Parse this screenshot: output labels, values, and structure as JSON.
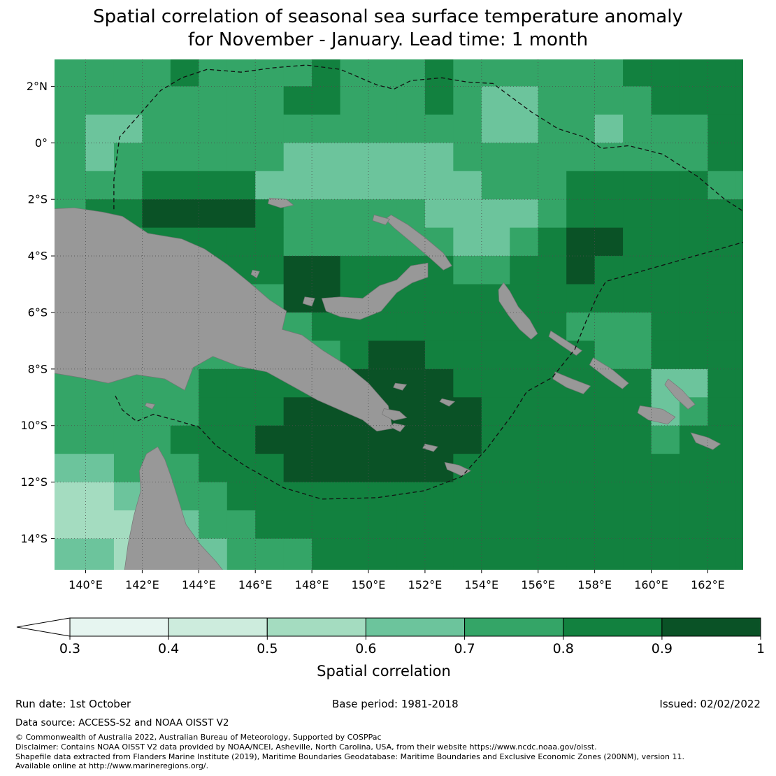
{
  "title": {
    "line1": "Spatial correlation of seasonal sea surface temperature anomaly",
    "line2": "for November - January. Lead time: 1 month"
  },
  "footer": {
    "run_date": "Run date: 1st October",
    "base_period": "Base period: 1981-2018",
    "issued": "Issued: 02/02/2022",
    "data_source": "Data source: ACCESS-S2 and NOAA OISST V2",
    "copyright": "© Commonwealth of Australia 2022, Australian Bureau of Meteorology, Supported by COSPPac",
    "disclaimer": "Disclaimer: Contains NOAA OISST V2 data provided by NOAA/NCEI, Asheville, North Carolina, USA, from their website https://www.ncdc.noaa.gov/oisst.",
    "shapefile": "Shapefile data extracted from Flanders Marine Institute (2019), Maritime Boundaries Geodatabase: Maritime Boundaries and Exclusive Economic Zones (200NM), version 11.",
    "available": "Available online at http://www.marineregions.org/."
  },
  "chart_data": {
    "type": "heatmap",
    "title": "Spatial correlation of seasonal sea surface temperature anomaly for November - January. Lead time: 1 month",
    "bin_colors": {
      "3": "#e6f5f0",
      "4": "#cdecdd",
      "5": "#a4dcc0",
      "6": "#6cc49c",
      "7": "#34a567",
      "8": "#12813f",
      "9": "#0a5226"
    },
    "colorbar": {
      "label": "Spatial correlation",
      "ticks": [
        "0.3",
        "0.4",
        "0.5",
        "0.6",
        "0.7",
        "0.8",
        "0.9",
        "1"
      ],
      "under_color": "#ffffff",
      "bins": [
        {
          "min": 0.3,
          "max": 0.4,
          "key": "3"
        },
        {
          "min": 0.4,
          "max": 0.5,
          "key": "4"
        },
        {
          "min": 0.5,
          "max": 0.6,
          "key": "5"
        },
        {
          "min": 0.6,
          "max": 0.7,
          "key": "6"
        },
        {
          "min": 0.7,
          "max": 0.8,
          "key": "7"
        },
        {
          "min": 0.8,
          "max": 0.9,
          "key": "8"
        },
        {
          "min": 0.9,
          "max": 1.0,
          "key": "9"
        }
      ]
    },
    "map": {
      "lon_range": [
        138.9,
        163.25
      ],
      "lat_range": [
        2.95,
        -15.1
      ],
      "land_color": "#989898",
      "x_ticks": [
        {
          "lon": 140,
          "label": "140°E"
        },
        {
          "lon": 142,
          "label": "142°E"
        },
        {
          "lon": 144,
          "label": "144°E"
        },
        {
          "lon": 146,
          "label": "146°E"
        },
        {
          "lon": 148,
          "label": "148°E"
        },
        {
          "lon": 150,
          "label": "150°E"
        },
        {
          "lon": 152,
          "label": "152°E"
        },
        {
          "lon": 154,
          "label": "154°E"
        },
        {
          "lon": 156,
          "label": "156°E"
        },
        {
          "lon": 158,
          "label": "158°E"
        },
        {
          "lon": 160,
          "label": "160°E"
        },
        {
          "lon": 162,
          "label": "162°E"
        }
      ],
      "y_ticks": [
        {
          "lat": 2,
          "label": "2°N"
        },
        {
          "lat": 0,
          "label": "0°"
        },
        {
          "lat": -2,
          "label": "2°S"
        },
        {
          "lat": -4,
          "label": "4°S"
        },
        {
          "lat": -6,
          "label": "6°S"
        },
        {
          "lat": -8,
          "label": "8°S"
        },
        {
          "lat": -10,
          "label": "10°S"
        },
        {
          "lat": -12,
          "label": "12°S"
        },
        {
          "lat": -14,
          "label": "14°S"
        }
      ],
      "grid": {
        "lon0": 138,
        "lat0": 3,
        "cols": 26,
        "cell_deg": 1,
        "rows_rle": [
          "7:5,8:1,7:4,8:1,7:3,8:1,7:6,8:5",
          "7:9,8:2,7:3,8:1,7:1,6:2,7:4,8:4",
          "7:2,6:2,7:12,6:2,7:2,6:1,7:3,8:2",
          "7:2,6:1,7:6,6:6,7:9,8:2",
          "7:4,8:4,6:8,7:3,8:5,7:2",
          "7:2,8:2,9:4,8:1,7:5,6:4,7:1,8:7",
          "7:4,8:5,7:6,6:2,7:1,8:1,9:2,8:5",
          "7:6,8:3,9:2,8:4,7:2,8:2,9:1,8:6",
          "7:9,9:2,8:15",
          "7:10,8:9,7:3,8:4",
          "7:11,8:1,9:2,8:6,7:2,8:4",
          "7:6,8:5,9:4,8:7,6:2,8:2",
          "7:6,8:3,9:7,8:6,6:1,7:1,8:2",
          "7:5,8:3,9:8,8:6,7:1,8:3",
          "6:3,7:3,8:3,9:6,8:11",
          "5:3,6:2,7:2,8:19",
          "5:5,6:1,7:2,8:18",
          "6:3,5:2,6:2,7:3,8:16",
          "6:3,5:2,6:2,7:3,8:16"
        ]
      },
      "land": {
        "new_guinea": [
          [
            138.6,
            -2.35
          ],
          [
            139.6,
            -2.3
          ],
          [
            140.6,
            -2.45
          ],
          [
            141.3,
            -2.6
          ],
          [
            142.2,
            -3.2
          ],
          [
            143.4,
            -3.4
          ],
          [
            144.2,
            -3.75
          ],
          [
            145.0,
            -4.3
          ],
          [
            145.8,
            -4.95
          ],
          [
            146.5,
            -5.55
          ],
          [
            147.1,
            -5.95
          ],
          [
            146.95,
            -6.6
          ],
          [
            147.65,
            -6.8
          ],
          [
            148.4,
            -7.35
          ],
          [
            149.2,
            -7.85
          ],
          [
            150.0,
            -8.5
          ],
          [
            150.7,
            -9.3
          ],
          [
            150.85,
            -10.1
          ],
          [
            150.3,
            -10.2
          ],
          [
            149.8,
            -9.8
          ],
          [
            149.0,
            -9.45
          ],
          [
            148.2,
            -9.1
          ],
          [
            147.3,
            -8.6
          ],
          [
            146.4,
            -8.1
          ],
          [
            145.4,
            -7.9
          ],
          [
            144.5,
            -7.55
          ],
          [
            143.8,
            -7.95
          ],
          [
            143.5,
            -8.75
          ],
          [
            142.8,
            -8.35
          ],
          [
            141.8,
            -8.2
          ],
          [
            140.8,
            -8.5
          ],
          [
            139.8,
            -8.3
          ],
          [
            138.9,
            -8.15
          ],
          [
            138.6,
            -7.8
          ]
        ],
        "cape_york": [
          [
            141.35,
            -15.3
          ],
          [
            141.5,
            -14.2
          ],
          [
            141.7,
            -13.2
          ],
          [
            141.95,
            -12.3
          ],
          [
            141.9,
            -11.6
          ],
          [
            142.15,
            -11.0
          ],
          [
            142.55,
            -10.75
          ],
          [
            142.8,
            -11.2
          ],
          [
            143.05,
            -11.9
          ],
          [
            143.3,
            -12.7
          ],
          [
            143.55,
            -13.5
          ],
          [
            144.05,
            -14.2
          ],
          [
            144.6,
            -14.8
          ],
          [
            145.0,
            -15.3
          ]
        ],
        "new_britain": [
          [
            148.35,
            -5.5
          ],
          [
            149.0,
            -5.45
          ],
          [
            149.8,
            -5.5
          ],
          [
            150.4,
            -5.05
          ],
          [
            151.0,
            -4.85
          ],
          [
            151.5,
            -4.35
          ],
          [
            152.1,
            -4.25
          ],
          [
            152.1,
            -4.75
          ],
          [
            151.55,
            -4.95
          ],
          [
            151.0,
            -5.3
          ],
          [
            150.45,
            -5.95
          ],
          [
            149.7,
            -6.25
          ],
          [
            149.0,
            -6.15
          ],
          [
            148.5,
            -5.95
          ]
        ],
        "new_ireland": [
          [
            150.8,
            -2.55
          ],
          [
            151.4,
            -2.9
          ],
          [
            152.0,
            -3.35
          ],
          [
            152.65,
            -3.9
          ],
          [
            152.95,
            -4.35
          ],
          [
            152.65,
            -4.5
          ],
          [
            152.15,
            -4.05
          ],
          [
            151.5,
            -3.5
          ],
          [
            150.9,
            -3.0
          ],
          [
            150.6,
            -2.7
          ]
        ],
        "new_hanover": [
          [
            150.2,
            -2.55
          ],
          [
            150.75,
            -2.7
          ],
          [
            150.6,
            -2.9
          ],
          [
            150.15,
            -2.75
          ]
        ],
        "manus": [
          [
            146.5,
            -1.95
          ],
          [
            147.1,
            -2.0
          ],
          [
            147.35,
            -2.2
          ],
          [
            146.9,
            -2.3
          ],
          [
            146.45,
            -2.15
          ]
        ],
        "umboi": [
          [
            147.75,
            -5.45
          ],
          [
            148.1,
            -5.5
          ],
          [
            148.0,
            -5.78
          ],
          [
            147.68,
            -5.68
          ]
        ],
        "karkar": [
          [
            145.9,
            -4.5
          ],
          [
            146.15,
            -4.55
          ],
          [
            146.05,
            -4.78
          ],
          [
            145.85,
            -4.65
          ]
        ],
        "bougainville": [
          [
            154.6,
            -5.2
          ],
          [
            154.78,
            -4.95
          ],
          [
            155.0,
            -5.25
          ],
          [
            155.3,
            -5.8
          ],
          [
            155.7,
            -6.25
          ],
          [
            155.98,
            -6.75
          ],
          [
            155.75,
            -6.95
          ],
          [
            155.35,
            -6.6
          ],
          [
            154.95,
            -6.1
          ],
          [
            154.62,
            -5.6
          ]
        ],
        "choiseul": [
          [
            156.45,
            -6.65
          ],
          [
            157.0,
            -7.0
          ],
          [
            157.55,
            -7.35
          ],
          [
            157.35,
            -7.52
          ],
          [
            156.8,
            -7.15
          ],
          [
            156.38,
            -6.85
          ]
        ],
        "new_georgia": [
          [
            156.6,
            -8.1
          ],
          [
            157.2,
            -8.35
          ],
          [
            157.85,
            -8.6
          ],
          [
            157.6,
            -8.88
          ],
          [
            157.0,
            -8.65
          ],
          [
            156.52,
            -8.35
          ]
        ],
        "santa_isabel": [
          [
            157.95,
            -7.6
          ],
          [
            158.6,
            -8.0
          ],
          [
            159.2,
            -8.5
          ],
          [
            158.98,
            -8.7
          ],
          [
            158.4,
            -8.3
          ],
          [
            157.82,
            -7.85
          ]
        ],
        "guadalcanal": [
          [
            159.6,
            -9.3
          ],
          [
            160.4,
            -9.42
          ],
          [
            160.85,
            -9.7
          ],
          [
            160.58,
            -9.95
          ],
          [
            159.9,
            -9.8
          ],
          [
            159.52,
            -9.55
          ]
        ],
        "malaita": [
          [
            160.6,
            -8.35
          ],
          [
            161.1,
            -8.75
          ],
          [
            161.55,
            -9.25
          ],
          [
            161.3,
            -9.42
          ],
          [
            160.85,
            -9.0
          ],
          [
            160.48,
            -8.55
          ]
        ],
        "makira": [
          [
            161.4,
            -10.25
          ],
          [
            162.0,
            -10.42
          ],
          [
            162.45,
            -10.65
          ],
          [
            162.18,
            -10.85
          ],
          [
            161.58,
            -10.6
          ]
        ],
        "dentrecasteaux": [
          [
            150.55,
            -9.4
          ],
          [
            151.1,
            -9.5
          ],
          [
            151.35,
            -9.72
          ],
          [
            150.9,
            -9.82
          ],
          [
            150.48,
            -9.6
          ]
        ],
        "fergusson": [
          [
            150.9,
            -9.92
          ],
          [
            151.3,
            -10.0
          ],
          [
            151.12,
            -10.22
          ],
          [
            150.78,
            -10.05
          ]
        ],
        "trobriand": [
          [
            150.95,
            -8.5
          ],
          [
            151.35,
            -8.55
          ],
          [
            151.2,
            -8.75
          ],
          [
            150.88,
            -8.65
          ]
        ],
        "woodlark": [
          [
            152.6,
            -9.05
          ],
          [
            153.05,
            -9.15
          ],
          [
            152.85,
            -9.32
          ],
          [
            152.52,
            -9.15
          ]
        ],
        "misima": [
          [
            152.0,
            -10.65
          ],
          [
            152.45,
            -10.75
          ],
          [
            152.3,
            -10.92
          ],
          [
            151.92,
            -10.8
          ]
        ],
        "louisiade": [
          [
            152.7,
            -11.3
          ],
          [
            153.2,
            -11.4
          ],
          [
            153.62,
            -11.6
          ],
          [
            153.3,
            -11.78
          ],
          [
            152.78,
            -11.55
          ]
        ],
        "torres_islands": [
          [
            142.15,
            -9.2
          ],
          [
            142.45,
            -9.25
          ],
          [
            142.35,
            -9.42
          ],
          [
            142.1,
            -9.3
          ]
        ]
      },
      "eez_boundaries": [
        {
          "name": "png-eez-north",
          "points": [
            [
              141.0,
              -2.35
            ],
            [
              141.0,
              -1.3
            ],
            [
              141.2,
              0.2
            ],
            [
              142.65,
              1.85
            ],
            [
              143.4,
              2.3
            ],
            [
              144.3,
              2.6
            ],
            [
              145.5,
              2.5
            ],
            [
              146.6,
              2.65
            ],
            [
              147.8,
              2.75
            ],
            [
              149.0,
              2.6
            ],
            [
              150.3,
              2.05
            ],
            [
              150.9,
              1.9
            ],
            [
              151.5,
              2.2
            ],
            [
              152.6,
              2.3
            ],
            [
              153.5,
              2.15
            ],
            [
              154.4,
              2.1
            ],
            [
              155.75,
              1.1
            ],
            [
              156.7,
              0.5
            ],
            [
              157.65,
              0.2
            ],
            [
              158.25,
              -0.2
            ],
            [
              159.2,
              -0.1
            ],
            [
              160.4,
              -0.4
            ],
            [
              161.65,
              -1.2
            ],
            [
              162.6,
              -2.0
            ],
            [
              163.3,
              -2.45
            ]
          ]
        },
        {
          "name": "png-eez-south",
          "points": [
            [
              141.05,
              -8.95
            ],
            [
              141.3,
              -9.45
            ],
            [
              141.8,
              -9.85
            ],
            [
              142.4,
              -9.6
            ],
            [
              143.15,
              -9.8
            ],
            [
              144.0,
              -10.05
            ],
            [
              144.6,
              -10.7
            ],
            [
              145.6,
              -11.4
            ],
            [
              147.0,
              -12.2
            ],
            [
              148.35,
              -12.6
            ],
            [
              150.3,
              -12.55
            ],
            [
              152.0,
              -12.3
            ],
            [
              153.3,
              -11.8
            ],
            [
              154.2,
              -10.8
            ],
            [
              155.1,
              -9.6
            ],
            [
              155.6,
              -8.8
            ],
            [
              156.5,
              -8.3
            ],
            [
              157.3,
              -7.3
            ],
            [
              157.7,
              -6.3
            ],
            [
              158.1,
              -5.4
            ],
            [
              158.4,
              -4.9
            ],
            [
              163.3,
              -3.5
            ]
          ]
        }
      ]
    }
  }
}
